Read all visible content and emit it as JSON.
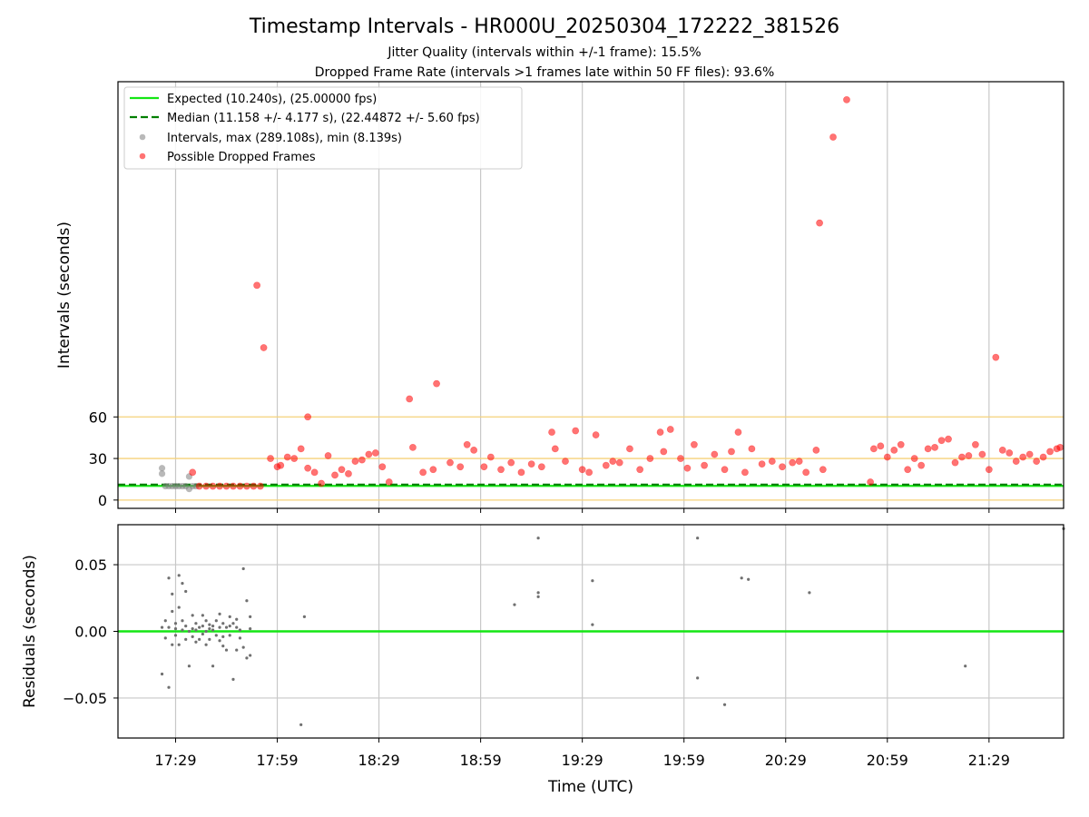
{
  "chart_data": [
    {
      "type": "scatter",
      "title": "Timestamp Intervals - HR000U_20250304_172222_381526",
      "subtitle_1": "Jitter Quality (intervals within +/-1 frame): 15.5%",
      "subtitle_2": "Dropped Frame Rate (intervals >1 frames late within 50 FF files): 93.6%",
      "xlabel": "",
      "ylabel": "Intervals (seconds)",
      "x_tick_labels": [
        "17:29",
        "17:59",
        "18:29",
        "18:59",
        "19:29",
        "19:59",
        "20:29",
        "20:59",
        "21:29"
      ],
      "x_range": [
        "17:12",
        "21:51"
      ],
      "y_tick_labels": [
        "0",
        "30",
        "60"
      ],
      "y_ticks": [
        0,
        30,
        60
      ],
      "y_range": [
        -6,
        302
      ],
      "grid_x": true,
      "horizontal_reference_lines": [
        0,
        30,
        60
      ],
      "horizontal_reference_color": "#f5d27a",
      "legend_position": "upper-left",
      "legend": [
        "Expected (10.240s), (25.00000 fps)",
        "Median (11.158 +/- 4.177 s), (22.44872 +/- 5.60 fps)",
        "Intervals, max (289.108s), min (8.139s)",
        "Possible Dropped Frames"
      ],
      "expected_interval": 10.24,
      "median_interval": 11.158,
      "colors": {
        "expected": "#14e614",
        "median": "#007f00",
        "intervals": "#808080",
        "dropped": "#ff0000"
      },
      "series": [
        {
          "points": [
            [
              "17:25",
              23
            ],
            [
              "17:25",
              19
            ],
            [
              "17:26",
              10
            ],
            [
              "17:27",
              10
            ],
            [
              "17:28",
              10
            ],
            [
              "17:29",
              10
            ],
            [
              "17:30",
              10
            ],
            [
              "17:31",
              10
            ],
            [
              "17:32",
              10
            ],
            [
              "17:33",
              8
            ],
            [
              "17:33",
              17
            ],
            [
              "17:34",
              10
            ],
            [
              "17:35",
              10
            ]
          ]
        },
        {
          "points": [
            [
              "17:34",
              20
            ],
            [
              "17:36",
              10
            ],
            [
              "17:38",
              10
            ],
            [
              "17:40",
              10
            ],
            [
              "17:42",
              10
            ],
            [
              "17:44",
              10
            ],
            [
              "17:46",
              10
            ],
            [
              "17:48",
              10
            ],
            [
              "17:50",
              10
            ],
            [
              "17:52",
              10
            ],
            [
              "17:54",
              10
            ],
            [
              "17:53",
              155
            ],
            [
              "17:55",
              110
            ],
            [
              "17:57",
              30
            ],
            [
              "17:59",
              24
            ],
            [
              "18:00",
              25
            ],
            [
              "18:02",
              31
            ],
            [
              "18:04",
              30
            ],
            [
              "18:06",
              37
            ],
            [
              "18:08",
              23
            ],
            [
              "18:10",
              20
            ],
            [
              "18:12",
              12
            ],
            [
              "18:14",
              32
            ],
            [
              "18:16",
              18
            ],
            [
              "18:18",
              22
            ],
            [
              "18:20",
              19
            ],
            [
              "18:22",
              28
            ],
            [
              "18:24",
              29
            ],
            [
              "18:26",
              33
            ],
            [
              "18:28",
              34
            ],
            [
              "18:30",
              24
            ],
            [
              "18:32",
              13
            ],
            [
              "18:08",
              60
            ],
            [
              "18:38",
              73
            ],
            [
              "18:39",
              38
            ],
            [
              "18:42",
              20
            ],
            [
              "18:46",
              84
            ],
            [
              "18:45",
              22
            ],
            [
              "18:50",
              27
            ],
            [
              "18:53",
              24
            ],
            [
              "18:55",
              40
            ],
            [
              "18:57",
              36
            ],
            [
              "19:00",
              24
            ],
            [
              "19:02",
              31
            ],
            [
              "19:05",
              22
            ],
            [
              "19:08",
              27
            ],
            [
              "19:11",
              20
            ],
            [
              "19:14",
              26
            ],
            [
              "19:17",
              24
            ],
            [
              "19:20",
              49
            ],
            [
              "19:21",
              37
            ],
            [
              "19:24",
              28
            ],
            [
              "19:27",
              50
            ],
            [
              "19:29",
              22
            ],
            [
              "19:31",
              20
            ],
            [
              "19:33",
              47
            ],
            [
              "19:36",
              25
            ],
            [
              "19:38",
              28
            ],
            [
              "19:40",
              27
            ],
            [
              "19:43",
              37
            ],
            [
              "19:46",
              22
            ],
            [
              "19:49",
              30
            ],
            [
              "19:52",
              49
            ],
            [
              "19:53",
              35
            ],
            [
              "19:55",
              51
            ],
            [
              "19:58",
              30
            ],
            [
              "20:00",
              23
            ],
            [
              "20:02",
              40
            ],
            [
              "20:05",
              25
            ],
            [
              "20:08",
              33
            ],
            [
              "20:11",
              22
            ],
            [
              "20:13",
              35
            ],
            [
              "20:15",
              49
            ],
            [
              "20:17",
              20
            ],
            [
              "20:19",
              37
            ],
            [
              "20:22",
              26
            ],
            [
              "20:25",
              28
            ],
            [
              "20:28",
              24
            ],
            [
              "20:31",
              27
            ],
            [
              "20:33",
              28
            ],
            [
              "20:35",
              20
            ],
            [
              "20:38",
              36
            ],
            [
              "20:39",
              200
            ],
            [
              "20:40",
              22
            ],
            [
              "20:43",
              262
            ],
            [
              "20:47",
              289
            ],
            [
              "20:54",
              13
            ],
            [
              "20:55",
              37
            ],
            [
              "20:57",
              39
            ],
            [
              "20:59",
              31
            ],
            [
              "21:01",
              36
            ],
            [
              "21:03",
              40
            ],
            [
              "21:05",
              22
            ],
            [
              "21:07",
              30
            ],
            [
              "21:09",
              25
            ],
            [
              "21:11",
              37
            ],
            [
              "21:13",
              38
            ],
            [
              "21:15",
              43
            ],
            [
              "21:17",
              44
            ],
            [
              "21:19",
              27
            ],
            [
              "21:21",
              31
            ],
            [
              "21:23",
              32
            ],
            [
              "21:25",
              40
            ],
            [
              "21:27",
              33
            ],
            [
              "21:29",
              22
            ],
            [
              "21:31",
              103
            ],
            [
              "21:33",
              36
            ],
            [
              "21:35",
              34
            ],
            [
              "21:37",
              28
            ],
            [
              "21:39",
              31
            ],
            [
              "21:41",
              33
            ],
            [
              "21:43",
              28
            ],
            [
              "21:45",
              31
            ],
            [
              "21:47",
              35
            ],
            [
              "21:49",
              37
            ],
            [
              "21:50",
              38
            ]
          ]
        }
      ]
    },
    {
      "type": "scatter",
      "xlabel": "Time (UTC)",
      "ylabel": "Residuals (seconds)",
      "x_tick_labels": [
        "17:29",
        "17:59",
        "18:29",
        "18:59",
        "19:29",
        "19:59",
        "20:29",
        "20:59",
        "21:29"
      ],
      "x_range": [
        "17:12",
        "21:51"
      ],
      "y_tick_labels": [
        "0.05",
        "0.00",
        "−0.05"
      ],
      "y_ticks": [
        0.05,
        0.0,
        -0.05
      ],
      "y_range": [
        -0.08,
        0.08
      ],
      "grid": true,
      "zero_line_color": "#14e614",
      "point_color": "#707070",
      "series": [
        {
          "points": [
            [
              "17:25",
              -0.032
            ],
            [
              "17:25",
              0.003
            ],
            [
              "17:26",
              0.008
            ],
            [
              "17:26",
              -0.005
            ],
            [
              "17:27",
              0.04
            ],
            [
              "17:27",
              -0.042
            ],
            [
              "17:27",
              0.003
            ],
            [
              "17:28",
              0.028
            ],
            [
              "17:28",
              -0.01
            ],
            [
              "17:28",
              0.015
            ],
            [
              "17:29",
              0.002
            ],
            [
              "17:29",
              0.006
            ],
            [
              "17:29",
              -0.003
            ],
            [
              "17:30",
              0.042
            ],
            [
              "17:30",
              -0.01
            ],
            [
              "17:30",
              0.018
            ],
            [
              "17:31",
              0.036
            ],
            [
              "17:31",
              0.001
            ],
            [
              "17:31",
              0.008
            ],
            [
              "17:32",
              0.03
            ],
            [
              "17:32",
              -0.006
            ],
            [
              "17:32",
              0.004
            ],
            [
              "17:33",
              -0.026
            ],
            [
              "17:33",
              0.0
            ],
            [
              "17:34",
              0.012
            ],
            [
              "17:34",
              -0.004
            ],
            [
              "17:34",
              0.002
            ],
            [
              "17:35",
              0.006
            ],
            [
              "17:35",
              -0.008
            ],
            [
              "17:35",
              0.001
            ],
            [
              "17:36",
              0.003
            ],
            [
              "17:36",
              -0.006
            ],
            [
              "17:37",
              0.012
            ],
            [
              "17:37",
              -0.002
            ],
            [
              "17:37",
              0.004
            ],
            [
              "17:38",
              0.008
            ],
            [
              "17:38",
              0.0
            ],
            [
              "17:38",
              -0.01
            ],
            [
              "17:39",
              0.002
            ],
            [
              "17:39",
              -0.006
            ],
            [
              "17:39",
              0.005
            ],
            [
              "17:40",
              0.001
            ],
            [
              "17:40",
              -0.026
            ],
            [
              "17:40",
              0.004
            ],
            [
              "17:41",
              0.008
            ],
            [
              "17:41",
              -0.003
            ],
            [
              "17:42",
              0.013
            ],
            [
              "17:42",
              0.003
            ],
            [
              "17:42",
              -0.007
            ],
            [
              "17:43",
              -0.004
            ],
            [
              "17:43",
              0.006
            ],
            [
              "17:43",
              -0.011
            ],
            [
              "17:44",
              0.003
            ],
            [
              "17:44",
              -0.014
            ],
            [
              "17:45",
              0.011
            ],
            [
              "17:45",
              -0.003
            ],
            [
              "17:45",
              0.004
            ],
            [
              "17:46",
              -0.036
            ],
            [
              "17:46",
              0.006
            ],
            [
              "17:47",
              -0.014
            ],
            [
              "17:47",
              0.003
            ],
            [
              "17:47",
              0.009
            ],
            [
              "17:48",
              -0.005
            ],
            [
              "17:48",
              0.001
            ],
            [
              "17:49",
              0.047
            ],
            [
              "17:49",
              -0.012
            ],
            [
              "17:50",
              0.023
            ],
            [
              "17:50",
              -0.02
            ],
            [
              "17:51",
              0.011
            ],
            [
              "17:51",
              -0.018
            ],
            [
              "17:51",
              0.002
            ],
            [
              "18:06",
              -0.07
            ],
            [
              "18:07",
              0.011
            ],
            [
              "19:09",
              0.02
            ],
            [
              "19:16",
              0.07
            ],
            [
              "19:16",
              0.029
            ],
            [
              "19:16",
              0.026
            ],
            [
              "19:32",
              0.038
            ],
            [
              "19:32",
              0.005
            ],
            [
              "20:03",
              0.07
            ],
            [
              "20:03",
              -0.035
            ],
            [
              "20:11",
              -0.055
            ],
            [
              "20:16",
              0.04
            ],
            [
              "20:18",
              0.039
            ],
            [
              "20:36",
              0.029
            ],
            [
              "21:22",
              -0.026
            ],
            [
              "21:51",
              0.077
            ]
          ]
        }
      ]
    }
  ]
}
